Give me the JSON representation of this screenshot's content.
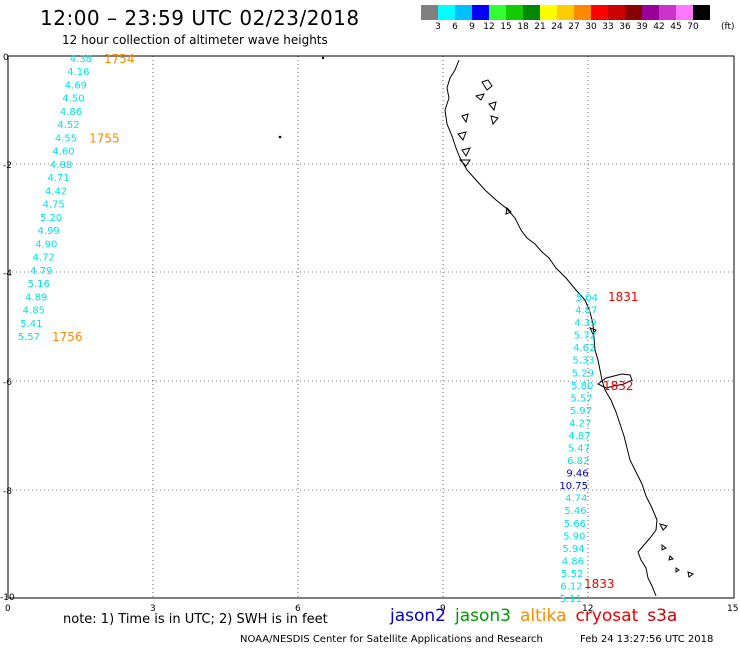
{
  "header": {
    "title": "12:00 – 23:59 UTC 02/23/2018",
    "subtitle": "12 hour collection of altimeter wave heights"
  },
  "color_scale": {
    "colors": [
      "#808080",
      "#00ffff",
      "#00bfff",
      "#0000ff",
      "#33ff33",
      "#11cc00",
      "#008800",
      "#ffff00",
      "#ffcc00",
      "#ff8800",
      "#ff0000",
      "#cc0000",
      "#880000",
      "#990099",
      "#cc33cc",
      "#ff77ff",
      "#000000"
    ],
    "labels": [
      "3",
      "6",
      "9",
      "12",
      "15",
      "18",
      "21",
      "24",
      "27",
      "30",
      "33",
      "36",
      "39",
      "42",
      "45",
      "70"
    ],
    "unit": "(ft)"
  },
  "axes": {
    "x_ticks": [
      "0",
      "3",
      "6",
      "9",
      "12",
      "15"
    ],
    "y_ticks": [
      "0",
      "-2",
      "-4",
      "-6",
      "-8",
      "-10"
    ],
    "x_range": [
      0,
      15
    ],
    "y_range": [
      -10,
      0
    ]
  },
  "satellites": {
    "names": [
      "jason2",
      "jason3",
      "altika",
      "cryosat",
      "s3a"
    ],
    "colors": [
      "#0000cc",
      "#009900",
      "#ff8800",
      "#ee0000",
      "#cc0000"
    ]
  },
  "track1": {
    "color": "#00e5e5",
    "values": [
      "4.38",
      "4.16",
      "4.69",
      "4.50",
      "4.86",
      "4.52",
      "4.55",
      "4.60",
      "4.88",
      "4.71",
      "4.42",
      "4.75",
      "5.20",
      "4.99",
      "4.90",
      "4.72",
      "4.79",
      "5.16",
      "4.89",
      "4.85",
      "5.41",
      "5.57"
    ],
    "times": [
      {
        "label": "1754",
        "color": "#ff8800",
        "after_index": 0
      },
      {
        "label": "1755",
        "color": "#ff8800",
        "after_index": 6
      },
      {
        "label": "1756",
        "color": "#ff8800",
        "after_index": 21
      }
    ]
  },
  "track2": {
    "values": [
      "5.04",
      "4.87",
      "4.39",
      "5.72",
      "4.62",
      "5.33",
      "5.29",
      "5.80",
      "5.57",
      "5.97",
      "4.27",
      "4.87",
      "5.47",
      "6.82",
      "9.46",
      "10.75",
      "4.74",
      "5.46",
      "5.66",
      "5.90",
      "5.94",
      "4.86",
      "5.52",
      "6.12",
      "5.11"
    ],
    "value_colors": [
      "#00e5e5",
      "#00e5e5",
      "#00e5e5",
      "#00e5e5",
      "#00e5e5",
      "#00e5e5",
      "#00e5e5",
      "#00e5e5",
      "#00e5e5",
      "#00e5e5",
      "#00e5e5",
      "#00e5e5",
      "#00e5e5",
      "#00e5e5",
      "#0000cc",
      "#0000cc",
      "#00e5e5",
      "#00e5e5",
      "#00e5e5",
      "#00e5e5",
      "#00e5e5",
      "#00e5e5",
      "#00e5e5",
      "#00e5e5",
      "#00e5e5"
    ],
    "times": [
      {
        "label": "1831",
        "color": "#ee0000"
      },
      {
        "label": "1832",
        "color": "#ee0000"
      },
      {
        "label": "1833",
        "color": "#ee0000"
      }
    ]
  },
  "footer": {
    "note": "note:  1) Time is in UTC;  2) SWH is in feet",
    "credit": "NOAA/NESDIS Center for Satellite Applications and Research",
    "stamp": "Feb 24 13:27:56 UTC 2018"
  }
}
